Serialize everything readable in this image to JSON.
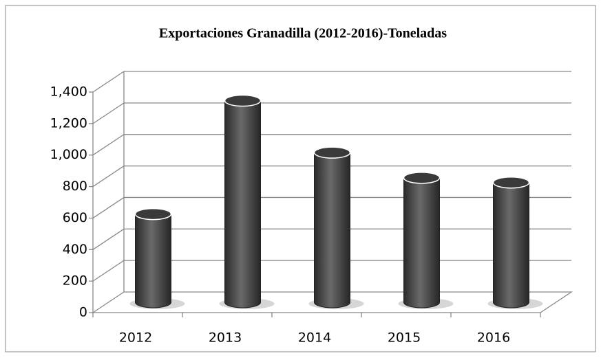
{
  "chart_data": {
    "type": "bar",
    "title": "Exportaciones Granadilla (2012-2016)-Toneladas",
    "categories": [
      "2012",
      "2013",
      "2014",
      "2015",
      "2016"
    ],
    "values": [
      560,
      1280,
      950,
      790,
      760
    ],
    "color": "#4a4a4a",
    "ylim": [
      0,
      1400
    ],
    "yticks": [
      0,
      200,
      400,
      600,
      800,
      {
        "value": 1000,
        "label": "1,000"
      },
      {
        "value": 1200,
        "label": "1,200"
      },
      {
        "value": 1400,
        "label": "1,400"
      }
    ],
    "grid": true
  }
}
